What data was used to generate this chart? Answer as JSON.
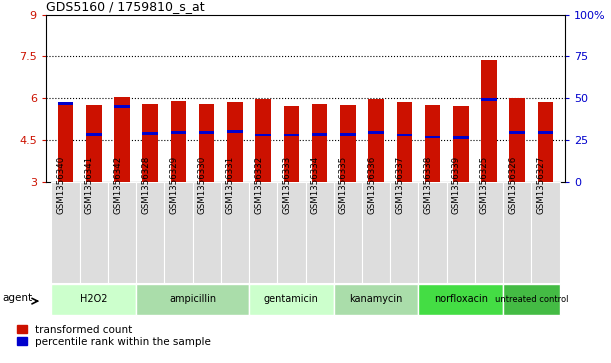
{
  "title": "GDS5160 / 1759810_s_at",
  "samples": [
    "GSM1356340",
    "GSM1356341",
    "GSM1356342",
    "GSM1356328",
    "GSM1356329",
    "GSM1356330",
    "GSM1356331",
    "GSM1356332",
    "GSM1356333",
    "GSM1356334",
    "GSM1356335",
    "GSM1356336",
    "GSM1356337",
    "GSM1356338",
    "GSM1356339",
    "GSM1356325",
    "GSM1356326",
    "GSM1356327"
  ],
  "red_values": [
    5.85,
    5.75,
    6.05,
    5.8,
    5.9,
    5.8,
    5.85,
    5.95,
    5.72,
    5.78,
    5.75,
    5.95,
    5.85,
    5.75,
    5.72,
    7.35,
    6.0,
    5.85
  ],
  "blue_values": [
    5.75,
    4.65,
    5.65,
    4.68,
    4.72,
    4.72,
    4.75,
    4.62,
    4.62,
    4.65,
    4.65,
    4.72,
    4.62,
    4.55,
    4.52,
    5.9,
    4.72,
    4.72
  ],
  "groups": [
    {
      "name": "H2O2",
      "start": 0,
      "end": 3,
      "color": "#ccffcc"
    },
    {
      "name": "ampicillin",
      "start": 3,
      "end": 7,
      "color": "#aaeebb"
    },
    {
      "name": "gentamicin",
      "start": 7,
      "end": 10,
      "color": "#ccffcc"
    },
    {
      "name": "kanamycin",
      "start": 10,
      "end": 13,
      "color": "#aaeebb"
    },
    {
      "name": "norfloxacin",
      "start": 13,
      "end": 16,
      "color": "#44dd44"
    },
    {
      "name": "untreated control",
      "start": 16,
      "end": 18,
      "color": "#55cc55"
    }
  ],
  "y_min": 3.0,
  "y_max": 9.0,
  "y_ticks": [
    3,
    4.5,
    6,
    7.5,
    9
  ],
  "y2_ticks": [
    0,
    25,
    50,
    75,
    100
  ],
  "bar_color": "#cc1100",
  "percentile_color": "#0000cc",
  "bg_color": "#ffffff",
  "bar_width": 0.55,
  "label_bg": "#dddddd",
  "agent_label": "agent"
}
